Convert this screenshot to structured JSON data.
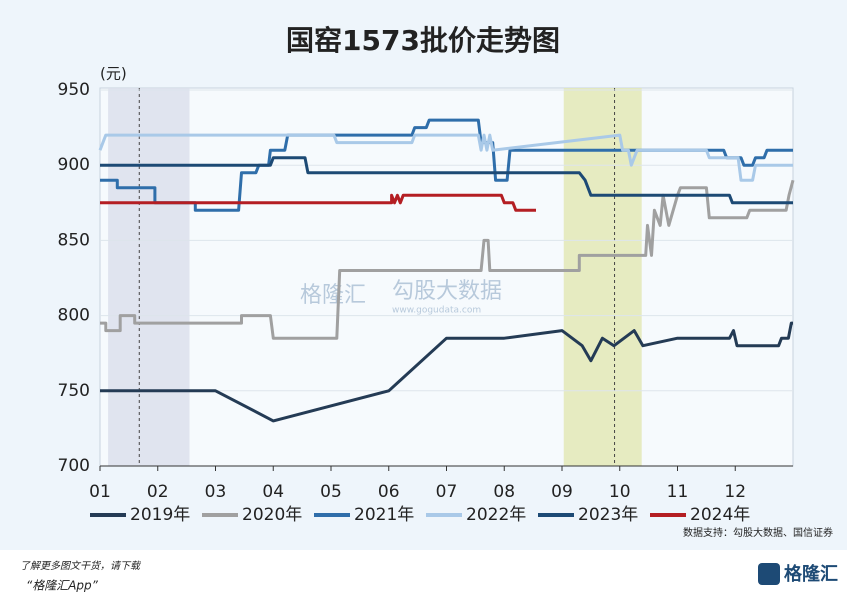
{
  "chart_data": {
    "type": "line",
    "title": "国窑1573批价走势图",
    "y_unit": "(元)",
    "xlim": [
      1,
      13
    ],
    "ylim": [
      700,
      950
    ],
    "xticks": [
      {
        "value": 1,
        "label": "01"
      },
      {
        "value": 2,
        "label": "02"
      },
      {
        "value": 3,
        "label": "03"
      },
      {
        "value": 4,
        "label": "04"
      },
      {
        "value": 5,
        "label": "05"
      },
      {
        "value": 6,
        "label": "06"
      },
      {
        "value": 7,
        "label": "07"
      },
      {
        "value": 8,
        "label": "08"
      },
      {
        "value": 9,
        "label": "09"
      },
      {
        "value": 10,
        "label": "10"
      },
      {
        "value": 11,
        "label": "11"
      },
      {
        "value": 12,
        "label": "12"
      }
    ],
    "yticks": [
      700,
      750,
      800,
      850,
      900,
      950
    ],
    "shaded_regions": [
      {
        "xlim": [
          1.14,
          2.55
        ],
        "color": "#dcdfec"
      },
      {
        "xlim": [
          9.03,
          10.38
        ],
        "color": "#e3e8b6"
      }
    ],
    "vlines": [
      1.68,
      9.91
    ],
    "series": [
      {
        "name": "2019年",
        "color": "#243b55",
        "x": [
          1,
          3,
          4,
          6,
          7,
          8,
          9,
          9.35,
          9.5,
          9.7,
          9.9,
          10.25,
          10.4,
          11,
          11.9,
          11.97,
          12.03,
          12.75,
          12.8,
          12.92,
          12.97,
          13
        ],
        "values": [
          750,
          750,
          730,
          750,
          785,
          785,
          790,
          780,
          770,
          785,
          780,
          790,
          780,
          785,
          785,
          790,
          780,
          780,
          785,
          785,
          795,
          795
        ]
      },
      {
        "name": "2020年",
        "color": "#a0a0a0",
        "x": [
          1,
          1.1,
          1.1,
          1.35,
          1.35,
          1.6,
          1.6,
          3.45,
          3.45,
          3.95,
          4,
          5.1,
          5.15,
          7.6,
          7.65,
          7.72,
          7.75,
          9.3,
          9.3,
          10.45,
          10.48,
          10.55,
          10.6,
          10.7,
          10.75,
          10.85,
          11,
          11.05,
          11.5,
          11.55,
          12.2,
          12.25,
          12.88,
          12.93,
          13
        ],
        "values": [
          795,
          795,
          790,
          790,
          800,
          800,
          795,
          795,
          800,
          800,
          785,
          785,
          830,
          830,
          850,
          850,
          830,
          830,
          840,
          840,
          860,
          840,
          870,
          860,
          880,
          860,
          880,
          885,
          885,
          865,
          865,
          870,
          870,
          880,
          890
        ]
      },
      {
        "name": "2021年",
        "color": "#2f6eaa",
        "x": [
          1,
          1.3,
          1.3,
          1.95,
          1.95,
          2.05,
          2.05,
          2.65,
          2.65,
          3.4,
          3.45,
          3.7,
          3.75,
          3.92,
          3.95,
          4.2,
          4.25,
          6.4,
          6.45,
          6.65,
          6.7,
          7.55,
          7.6,
          7.8,
          7.85,
          8.05,
          8.1,
          11.8,
          11.85,
          12.1,
          12.15,
          12.3,
          12.35,
          12.5,
          12.55,
          13
        ],
        "values": [
          890,
          890,
          885,
          885,
          875,
          875,
          875,
          875,
          870,
          870,
          895,
          895,
          900,
          900,
          910,
          910,
          920,
          920,
          925,
          925,
          930,
          930,
          915,
          915,
          890,
          890,
          910,
          910,
          905,
          905,
          900,
          900,
          905,
          905,
          910,
          910
        ]
      },
      {
        "name": "2022年",
        "color": "#a9c9e8",
        "x": [
          1,
          1.1,
          5.05,
          5.1,
          6.4,
          6.45,
          7.55,
          7.6,
          7.65,
          7.7,
          7.75,
          7.8,
          10,
          10.05,
          10.15,
          10.2,
          10.3,
          11.5,
          11.55,
          12.05,
          12.1,
          12.3,
          12.35,
          13
        ],
        "values": [
          910,
          920,
          920,
          915,
          915,
          920,
          920,
          910,
          920,
          910,
          920,
          910,
          920,
          910,
          910,
          900,
          910,
          910,
          905,
          905,
          890,
          890,
          900,
          900
        ]
      },
      {
        "name": "2023年",
        "color": "#1d4a75",
        "x": [
          1,
          3.95,
          4,
          4.55,
          4.6,
          9.3,
          9.4,
          9.5,
          11.9,
          11.95,
          13
        ],
        "values": [
          900,
          900,
          905,
          905,
          895,
          895,
          890,
          880,
          880,
          875,
          875
        ]
      },
      {
        "name": "2024年",
        "color": "#b41e23",
        "x": [
          1,
          6.05,
          6.05,
          6.1,
          6.15,
          6.2,
          6.25,
          6.3,
          7.95,
          8,
          8.15,
          8.2,
          8.55
        ],
        "values": [
          875,
          875,
          880,
          875,
          880,
          875,
          880,
          880,
          880,
          875,
          875,
          870,
          870
        ]
      }
    ],
    "source": "数据支持：勾股大数据、国信证券",
    "watermark": [
      "格隆汇",
      "勾股大数据",
      "www.gogudata.com"
    ]
  },
  "footer": {
    "line1": "了解更多图文干货，请下载",
    "line2": "“格隆汇App”",
    "logo": "格隆汇"
  }
}
